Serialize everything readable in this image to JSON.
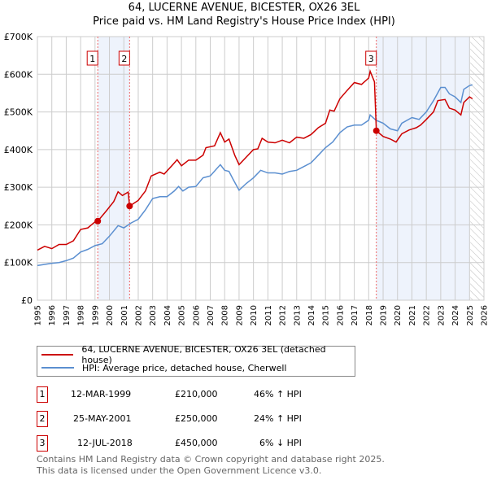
{
  "chart_data": {
    "type": "line",
    "title": "64, LUCERNE AVENUE, BICESTER, OX26 3EL",
    "subtitle": "Price paid vs. HM Land Registry's House Price Index (HPI)",
    "xlim": [
      1995,
      2026
    ],
    "ylim": [
      0,
      700000
    ],
    "x_ticks": [
      "1995",
      "1996",
      "1997",
      "1998",
      "1999",
      "2000",
      "2001",
      "2002",
      "2003",
      "2004",
      "2005",
      "2006",
      "2007",
      "2008",
      "2009",
      "2010",
      "2011",
      "2012",
      "2013",
      "2014",
      "2015",
      "2016",
      "2017",
      "2018",
      "2019",
      "2020",
      "2021",
      "2022",
      "2023",
      "2024",
      "2025",
      "2026"
    ],
    "y_ticks": [
      {
        "v": 0,
        "label": "£0"
      },
      {
        "v": 100000,
        "label": "£100K"
      },
      {
        "v": 200000,
        "label": "£200K"
      },
      {
        "v": 300000,
        "label": "£300K"
      },
      {
        "v": 400000,
        "label": "£400K"
      },
      {
        "v": 500000,
        "label": "£500K"
      },
      {
        "v": 600000,
        "label": "£600K"
      },
      {
        "v": 700000,
        "label": "£700K"
      }
    ],
    "grid": true,
    "shaded_ranges": [
      [
        1999.19,
        2001.4
      ],
      [
        2018.53,
        2025.0
      ]
    ],
    "hatched_from": 2025.05,
    "series": [
      {
        "name": "64, LUCERNE AVENUE, BICESTER, OX26 3EL (detached house)",
        "color": "#cc0000",
        "points": [
          [
            1995,
            133
          ],
          [
            1995.5,
            143
          ],
          [
            1996,
            137
          ],
          [
            1996.5,
            148
          ],
          [
            1997,
            148
          ],
          [
            1997.5,
            158
          ],
          [
            1998,
            188
          ],
          [
            1998.5,
            192
          ],
          [
            1999,
            208
          ],
          [
            1999.19,
            210
          ],
          [
            1999.8,
            238
          ],
          [
            2000.3,
            262
          ],
          [
            2000.6,
            288
          ],
          [
            2000.9,
            278
          ],
          [
            2001.3,
            287
          ],
          [
            2001.4,
            250
          ],
          [
            2002,
            265
          ],
          [
            2002.5,
            290
          ],
          [
            2002.9,
            330
          ],
          [
            2003.5,
            340
          ],
          [
            2003.8,
            335
          ],
          [
            2004.4,
            360
          ],
          [
            2004.7,
            373
          ],
          [
            2005,
            357
          ],
          [
            2005.5,
            372
          ],
          [
            2006,
            372
          ],
          [
            2006.5,
            385
          ],
          [
            2006.7,
            405
          ],
          [
            2007.3,
            410
          ],
          [
            2007.7,
            445
          ],
          [
            2008,
            420
          ],
          [
            2008.3,
            428
          ],
          [
            2008.7,
            385
          ],
          [
            2009,
            360
          ],
          [
            2009.5,
            380
          ],
          [
            2010,
            400
          ],
          [
            2010.3,
            402
          ],
          [
            2010.6,
            430
          ],
          [
            2011,
            420
          ],
          [
            2011.5,
            418
          ],
          [
            2012,
            425
          ],
          [
            2012.5,
            418
          ],
          [
            2013,
            433
          ],
          [
            2013.5,
            430
          ],
          [
            2014,
            440
          ],
          [
            2014.5,
            458
          ],
          [
            2015,
            470
          ],
          [
            2015.3,
            505
          ],
          [
            2015.6,
            502
          ],
          [
            2016,
            535
          ],
          [
            2016.5,
            557
          ],
          [
            2017,
            578
          ],
          [
            2017.5,
            573
          ],
          [
            2018,
            590
          ],
          [
            2018.1,
            608
          ],
          [
            2018.4,
            580
          ],
          [
            2018.53,
            450
          ],
          [
            2019,
            435
          ],
          [
            2019.5,
            428
          ],
          [
            2019.9,
            420
          ],
          [
            2020.3,
            442
          ],
          [
            2020.8,
            452
          ],
          [
            2021.3,
            458
          ],
          [
            2021.6,
            465
          ],
          [
            2022,
            480
          ],
          [
            2022.5,
            500
          ],
          [
            2022.8,
            530
          ],
          [
            2023.3,
            533
          ],
          [
            2023.6,
            510
          ],
          [
            2024,
            505
          ],
          [
            2024.4,
            492
          ],
          [
            2024.6,
            525
          ],
          [
            2025,
            540
          ],
          [
            2025.2,
            535
          ]
        ]
      },
      {
        "name": "HPI: Average price, detached house, Cherwell",
        "color": "#5b8fd0",
        "points": [
          [
            1995,
            92
          ],
          [
            1996,
            98
          ],
          [
            1996.5,
            100
          ],
          [
            1997,
            105
          ],
          [
            1997.5,
            112
          ],
          [
            1998,
            128
          ],
          [
            1998.5,
            135
          ],
          [
            1999,
            145
          ],
          [
            1999.5,
            150
          ],
          [
            2000,
            170
          ],
          [
            2000.6,
            198
          ],
          [
            2001,
            192
          ],
          [
            2001.5,
            205
          ],
          [
            2002,
            215
          ],
          [
            2002.5,
            240
          ],
          [
            2003,
            270
          ],
          [
            2003.5,
            275
          ],
          [
            2004,
            275
          ],
          [
            2004.5,
            290
          ],
          [
            2004.8,
            302
          ],
          [
            2005.1,
            290
          ],
          [
            2005.5,
            300
          ],
          [
            2006,
            302
          ],
          [
            2006.5,
            325
          ],
          [
            2007,
            330
          ],
          [
            2007.7,
            360
          ],
          [
            2008,
            345
          ],
          [
            2008.3,
            342
          ],
          [
            2008.6,
            320
          ],
          [
            2009,
            292
          ],
          [
            2009.5,
            310
          ],
          [
            2010,
            325
          ],
          [
            2010.5,
            345
          ],
          [
            2011,
            338
          ],
          [
            2011.5,
            338
          ],
          [
            2012,
            335
          ],
          [
            2012.5,
            342
          ],
          [
            2013,
            345
          ],
          [
            2013.5,
            355
          ],
          [
            2014,
            365
          ],
          [
            2014.5,
            385
          ],
          [
            2015,
            405
          ],
          [
            2015.5,
            420
          ],
          [
            2016,
            445
          ],
          [
            2016.5,
            460
          ],
          [
            2017,
            465
          ],
          [
            2017.5,
            465
          ],
          [
            2018,
            478
          ],
          [
            2018.1,
            492
          ],
          [
            2018.5,
            478
          ],
          [
            2019,
            470
          ],
          [
            2019.5,
            455
          ],
          [
            2020,
            450
          ],
          [
            2020.3,
            470
          ],
          [
            2021,
            485
          ],
          [
            2021.5,
            480
          ],
          [
            2022,
            500
          ],
          [
            2022.5,
            530
          ],
          [
            2023,
            565
          ],
          [
            2023.3,
            565
          ],
          [
            2023.6,
            548
          ],
          [
            2024,
            540
          ],
          [
            2024.4,
            525
          ],
          [
            2024.6,
            560
          ],
          [
            2025,
            570
          ],
          [
            2025.2,
            572
          ]
        ]
      }
    ],
    "point_units": "thousand GBP",
    "sales": [
      {
        "label": "1",
        "x": 1999.19,
        "price": 210000,
        "date": "12-MAR-1999",
        "price_text": "£210,000",
        "hpi": "46% ↑ HPI"
      },
      {
        "label": "2",
        "x": 2001.4,
        "price": 250000,
        "date": "25-MAY-2001",
        "price_text": "£250,000",
        "hpi": "24% ↑ HPI"
      },
      {
        "label": "3",
        "x": 2018.53,
        "price": 450000,
        "date": "12-JUL-2018",
        "price_text": "£450,000",
        "hpi": "6% ↓ HPI"
      }
    ],
    "legend_placement": "bottom"
  },
  "footer": {
    "line1": "Contains HM Land Registry data © Crown copyright and database right 2025.",
    "line2": "This data is licensed under the Open Government Licence v3.0."
  }
}
